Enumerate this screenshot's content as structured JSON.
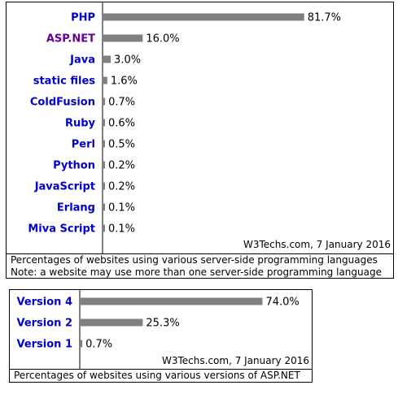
{
  "colors": {
    "bar": "#808080",
    "label": "#0000cc",
    "visited_label": "#660099",
    "axis": "#000000"
  },
  "chart_data": [
    {
      "type": "bar",
      "orientation": "horizontal",
      "categories": [
        "PHP",
        "ASP.NET",
        "Java",
        "static files",
        "ColdFusion",
        "Ruby",
        "Perl",
        "Python",
        "JavaScript",
        "Erlang",
        "Miva Script"
      ],
      "values": [
        81.7,
        16.0,
        3.0,
        1.6,
        0.7,
        0.6,
        0.5,
        0.2,
        0.2,
        0.1,
        0.1
      ],
      "value_labels": [
        "81.7%",
        "16.0%",
        "3.0%",
        "1.6%",
        "0.7%",
        "0.6%",
        "0.5%",
        "0.2%",
        "0.2%",
        "0.1%",
        "0.1%"
      ],
      "highlighted": [
        "ASP.NET"
      ],
      "source": "W3Techs.com, 7 January 2016",
      "caption": [
        "Percentages of websites using various server-side programming languages",
        "Note: a website may use more than one server-side programming language"
      ],
      "xlim": [
        0,
        100
      ]
    },
    {
      "type": "bar",
      "orientation": "horizontal",
      "categories": [
        "Version 4",
        "Version 2",
        "Version 1"
      ],
      "values": [
        74.0,
        25.3,
        0.7
      ],
      "value_labels": [
        "74.0%",
        "25.3%",
        "0.7%"
      ],
      "highlighted": [],
      "source": "W3Techs.com, 7 January 2016",
      "caption": [
        "Percentages of websites using various versions of ASP.NET"
      ],
      "xlim": [
        0,
        100
      ]
    }
  ]
}
